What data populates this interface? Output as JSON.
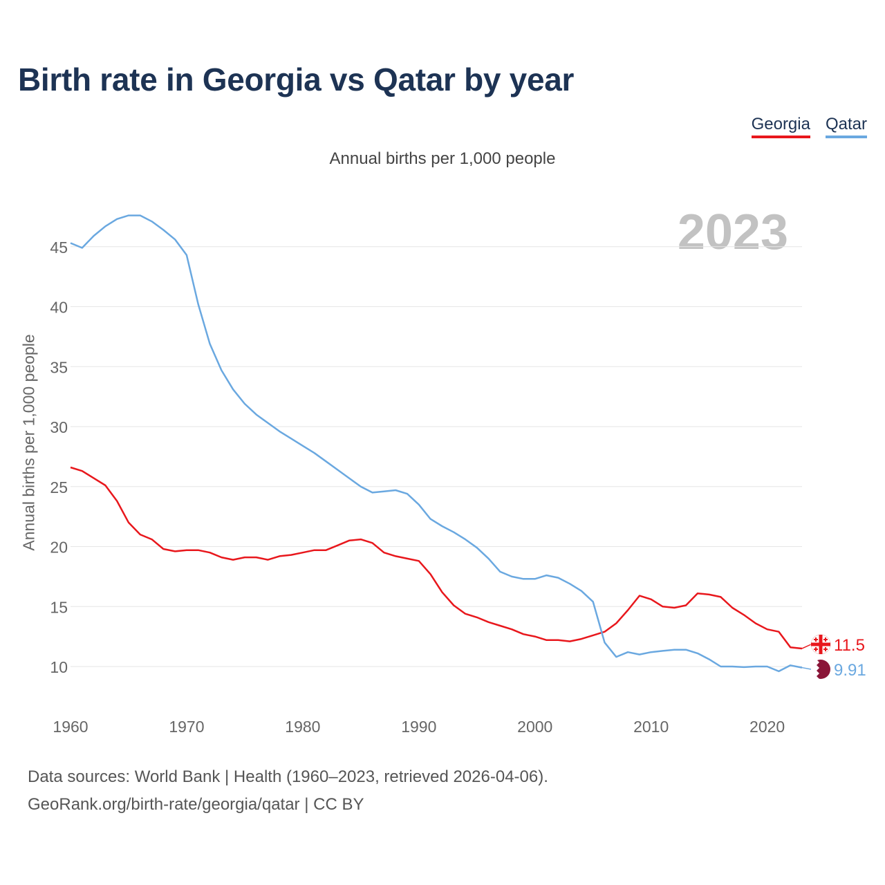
{
  "title": "Birth rate in Georgia vs Qatar by year",
  "subtitle": "Annual births per 1,000 people",
  "year_label": "2023",
  "legend": [
    {
      "name": "Georgia",
      "color": "#e8171c"
    },
    {
      "name": "Qatar",
      "color": "#6aa8e0"
    }
  ],
  "footer": {
    "line1": "Data sources: World Bank | Health (1960–2023, retrieved 2026-04-06).",
    "line2": "GeoRank.org/birth-rate/georgia/qatar | CC BY"
  },
  "chart_data": {
    "type": "line",
    "title": "Birth rate in Georgia vs Qatar by year",
    "xlabel": "",
    "ylabel": "Annual births per 1,000 people",
    "xlim": [
      1960,
      2023
    ],
    "ylim": [
      7,
      47.5
    ],
    "grid": true,
    "legend_position": "top-right",
    "x_ticks": [
      1960,
      1970,
      1980,
      1990,
      2000,
      2010,
      2020
    ],
    "y_ticks": [
      10,
      15,
      20,
      25,
      30,
      35,
      40,
      45
    ],
    "x": [
      1960,
      1961,
      1962,
      1963,
      1964,
      1965,
      1966,
      1967,
      1968,
      1969,
      1970,
      1971,
      1972,
      1973,
      1974,
      1975,
      1976,
      1977,
      1978,
      1979,
      1980,
      1981,
      1982,
      1983,
      1984,
      1985,
      1986,
      1987,
      1988,
      1989,
      1990,
      1991,
      1992,
      1993,
      1994,
      1995,
      1996,
      1997,
      1998,
      1999,
      2000,
      2001,
      2002,
      2003,
      2004,
      2005,
      2006,
      2007,
      2008,
      2009,
      2010,
      2011,
      2012,
      2013,
      2014,
      2015,
      2016,
      2017,
      2018,
      2019,
      2020,
      2021,
      2022,
      2023
    ],
    "series": [
      {
        "name": "Georgia",
        "color": "#e8171c",
        "end_label": "11.5",
        "values": [
          26.6,
          26.3,
          25.7,
          25.1,
          23.8,
          22.0,
          21.0,
          20.6,
          19.8,
          19.6,
          19.7,
          19.7,
          19.5,
          19.1,
          18.9,
          19.1,
          19.1,
          18.9,
          19.2,
          19.3,
          19.5,
          19.7,
          19.7,
          20.1,
          20.5,
          20.6,
          20.3,
          19.5,
          19.2,
          19.0,
          18.8,
          17.7,
          16.2,
          15.1,
          14.4,
          14.1,
          13.7,
          13.4,
          13.1,
          12.7,
          12.5,
          12.2,
          12.2,
          12.1,
          12.3,
          12.6,
          12.9,
          13.6,
          14.7,
          15.9,
          15.6,
          15.0,
          14.9,
          15.1,
          16.1,
          16.0,
          15.8,
          14.9,
          14.3,
          13.6,
          13.1,
          12.9,
          11.6,
          11.5
        ]
      },
      {
        "name": "Qatar",
        "color": "#6aa8e0",
        "end_label": "9.91",
        "values": [
          45.3,
          44.9,
          45.9,
          46.7,
          47.3,
          47.6,
          47.6,
          47.1,
          46.4,
          45.6,
          44.3,
          40.2,
          36.9,
          34.7,
          33.1,
          31.9,
          31.0,
          30.3,
          29.6,
          29.0,
          28.4,
          27.8,
          27.1,
          26.4,
          25.7,
          25.0,
          24.5,
          24.6,
          24.7,
          24.4,
          23.5,
          22.3,
          21.7,
          21.2,
          20.6,
          19.9,
          19.0,
          17.9,
          17.5,
          17.3,
          17.3,
          17.6,
          17.4,
          16.9,
          16.3,
          15.4,
          12.0,
          10.8,
          11.2,
          11.0,
          11.2,
          11.3,
          11.4,
          11.4,
          11.1,
          10.6,
          10.0,
          10.0,
          9.95,
          10.0,
          10.0,
          9.6,
          10.1,
          9.91
        ]
      }
    ]
  }
}
